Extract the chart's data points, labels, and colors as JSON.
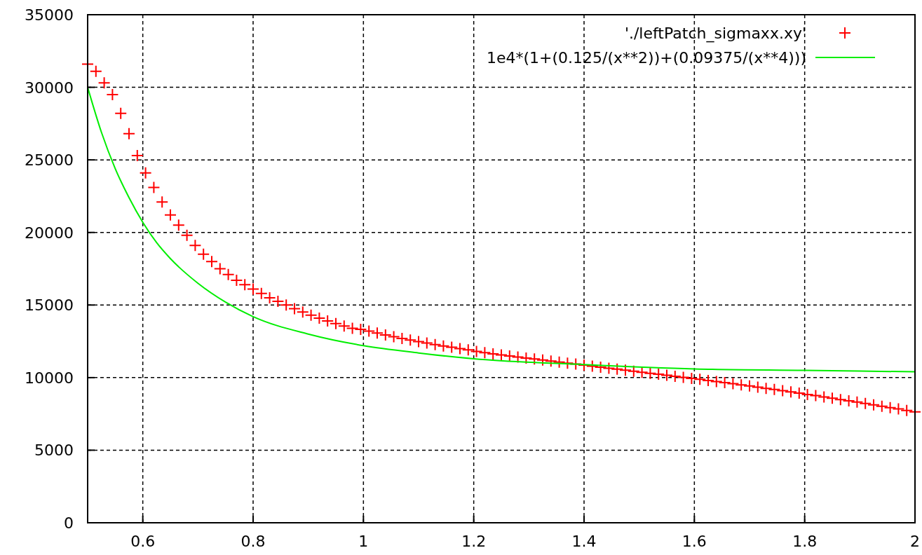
{
  "chart_data": {
    "type": "scatter",
    "xlim": [
      0.5,
      2
    ],
    "xticks": [
      0.6,
      0.8,
      1,
      1.2,
      1.4,
      1.6,
      1.8,
      2
    ],
    "ylim": [
      0,
      35000
    ],
    "yticks": [
      0,
      5000,
      10000,
      15000,
      20000,
      25000,
      30000,
      35000
    ],
    "grid": true,
    "legend": "top right",
    "series": [
      {
        "name": "'./leftPatch_sigmaxx.xy'",
        "marker": "cross",
        "color": "#ff0000",
        "x": [
          0.5,
          0.515,
          0.53,
          0.545,
          0.56,
          0.575,
          0.59,
          0.605,
          0.62,
          0.635,
          0.65,
          0.665,
          0.68,
          0.695,
          0.71,
          0.725,
          0.74,
          0.755,
          0.77,
          0.785,
          0.8,
          0.815,
          0.83,
          0.845,
          0.86,
          0.875,
          0.89,
          0.905,
          0.92,
          0.935,
          0.95,
          0.965,
          0.98,
          0.995,
          1.01,
          1.025,
          1.04,
          1.055,
          1.07,
          1.085,
          1.1,
          1.115,
          1.13,
          1.145,
          1.16,
          1.175,
          1.19,
          1.205,
          1.22,
          1.235,
          1.25,
          1.265,
          1.28,
          1.295,
          1.31,
          1.325,
          1.34,
          1.355,
          1.37,
          1.385,
          1.4,
          1.415,
          1.43,
          1.445,
          1.46,
          1.475,
          1.49,
          1.505,
          1.52,
          1.535,
          1.55,
          1.565,
          1.58,
          1.595,
          1.61,
          1.625,
          1.64,
          1.655,
          1.67,
          1.685,
          1.7,
          1.715,
          1.73,
          1.745,
          1.76,
          1.775,
          1.79,
          1.805,
          1.82,
          1.835,
          1.85,
          1.865,
          1.88,
          1.895,
          1.91,
          1.925,
          1.94,
          1.955,
          1.97,
          1.985,
          2.0
        ],
        "values": [
          31600,
          31100,
          30300,
          29500,
          28200,
          26800,
          25300,
          24100,
          23100,
          22100,
          21200,
          20500,
          19800,
          19100,
          18500,
          18000,
          17500,
          17100,
          16700,
          16400,
          16100,
          15800,
          15500,
          15250,
          15000,
          14750,
          14520,
          14300,
          14100,
          13900,
          13720,
          13550,
          13400,
          13330,
          13200,
          13070,
          12940,
          12820,
          12700,
          12590,
          12480,
          12380,
          12280,
          12180,
          12090,
          12000,
          11910,
          11800,
          11720,
          11640,
          11560,
          11490,
          11420,
          11350,
          11280,
          11210,
          11140,
          11070,
          11000,
          10930,
          10860,
          10790,
          10720,
          10650,
          10580,
          10510,
          10440,
          10370,
          10300,
          10230,
          10160,
          10090,
          10020,
          9950,
          9880,
          9800,
          9730,
          9650,
          9580,
          9500,
          9420,
          9340,
          9260,
          9180,
          9100,
          9010,
          8930,
          8840,
          8760,
          8670,
          8580,
          8490,
          8400,
          8310,
          8220,
          8120,
          8030,
          7930,
          7840,
          7740,
          7640
        ]
      },
      {
        "name": "1e4*(1+(0.125/(x**2))+(0.09375/(x**4)))",
        "type": "line",
        "line_style": "solid",
        "color": "#00ee00",
        "x": [
          0.5,
          0.525,
          0.55,
          0.575,
          0.6,
          0.625,
          0.65,
          0.7,
          0.75,
          0.8,
          0.9,
          1.0,
          1.1,
          1.2,
          1.4,
          1.6,
          1.8,
          2.0
        ],
        "values": [
          30000,
          26900,
          24400,
          22400,
          20700,
          19300,
          18200,
          16500,
          15200,
          14200,
          13000,
          12200,
          11700,
          11300,
          10900,
          10600,
          10500,
          10400
        ]
      }
    ]
  }
}
